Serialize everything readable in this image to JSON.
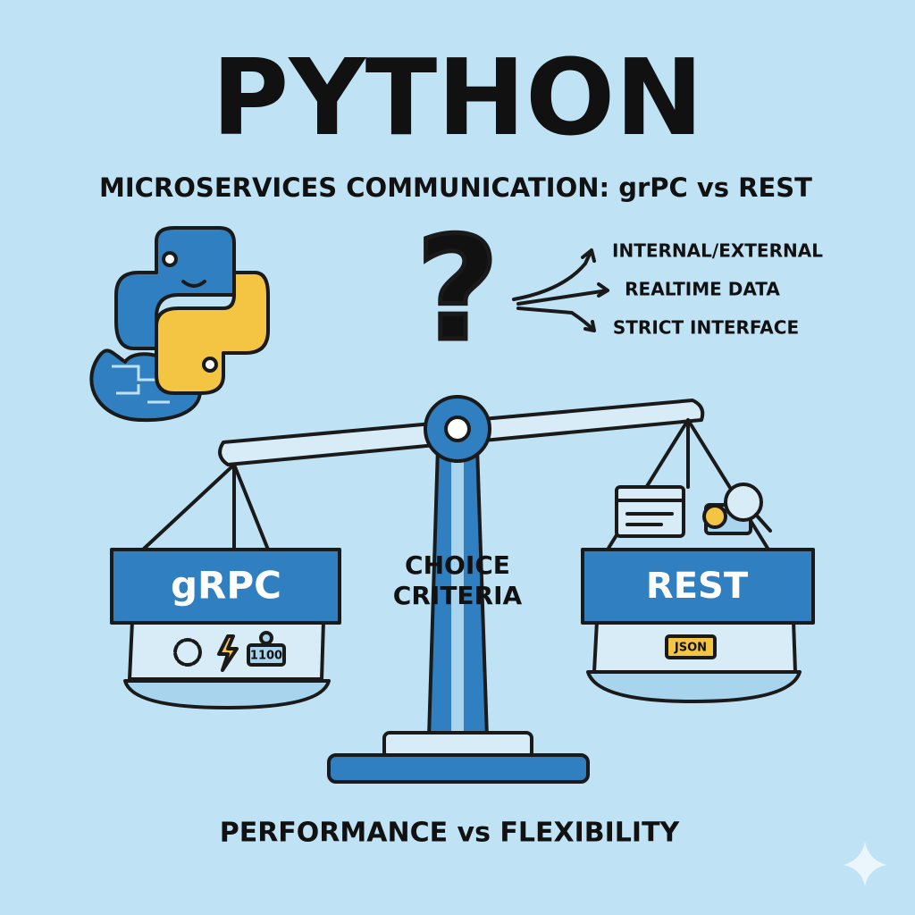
{
  "title": "PYTHON",
  "subtitle": "MICROSERVICES COMMUNICATION: grPC vs REST",
  "question": "?",
  "criteria_list": [
    "INTERNAL/EXTERNAL",
    "REALTIME DATA",
    "STRICT INTERFACE"
  ],
  "left_pan": {
    "label": "gRPC",
    "icon_text": "1100"
  },
  "center": {
    "lines": [
      "CHOICE",
      "CRITERIA"
    ]
  },
  "right_pan": {
    "label": "REST",
    "tag": "JSON"
  },
  "footer": "PERFORMANCE vs FLEXIBILITY"
}
